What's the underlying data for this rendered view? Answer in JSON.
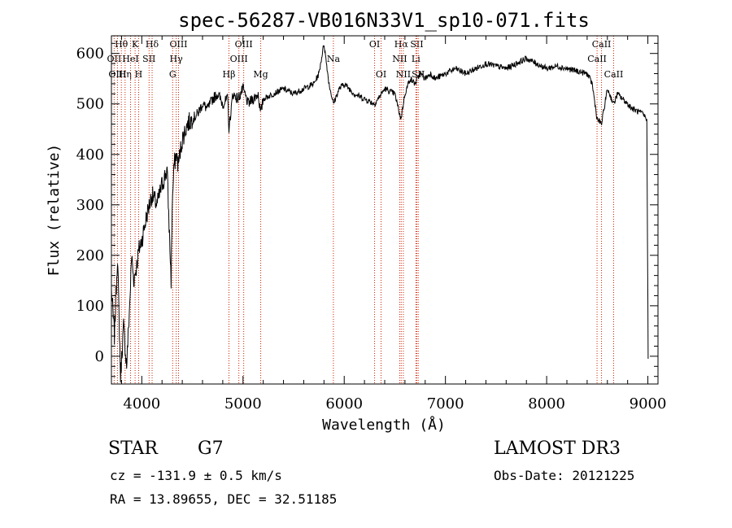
{
  "chart_data": {
    "type": "line",
    "title": "spec-56287-VB016N33V1_sp10-071.fits",
    "xlabel": "Wavelength (Å)",
    "ylabel": "Flux (relative)",
    "xlim": [
      3700,
      9100
    ],
    "ylim": [
      -55,
      635
    ],
    "xticks": [
      4000,
      5000,
      6000,
      7000,
      8000,
      9000
    ],
    "yticks": [
      0,
      100,
      200,
      300,
      400,
      500,
      600
    ],
    "grid": false,
    "series": [
      {
        "color": "#000000",
        "x": [
          3700,
          3730,
          3760,
          3790,
          3820,
          3850,
          3880,
          3900,
          3920,
          3950,
          3970,
          4000,
          4050,
          4100,
          4150,
          4200,
          4250,
          4290,
          4300,
          4320,
          4340,
          4360,
          4400,
          4450,
          4500,
          4550,
          4600,
          4650,
          4700,
          4750,
          4800,
          4850,
          4861,
          4900,
          4950,
          5000,
          5050,
          5100,
          5150,
          5175,
          5200,
          5300,
          5400,
          5500,
          5600,
          5700,
          5750,
          5800,
          5850,
          5893,
          5950,
          6000,
          6100,
          6200,
          6300,
          6400,
          6500,
          6560,
          6600,
          6650,
          6700,
          6750,
          6800,
          6850,
          6900,
          7000,
          7100,
          7200,
          7300,
          7400,
          7500,
          7600,
          7700,
          7800,
          7900,
          8000,
          8100,
          8200,
          8300,
          8400,
          8450,
          8498,
          8542,
          8600,
          8662,
          8700,
          8750,
          8800,
          8850,
          8900,
          8950,
          8990,
          9000,
          9003
        ],
        "values": [
          130,
          40,
          200,
          -40,
          60,
          -20,
          100,
          200,
          150,
          180,
          210,
          230,
          280,
          320,
          300,
          340,
          370,
          150,
          300,
          380,
          400,
          380,
          430,
          460,
          470,
          480,
          500,
          490,
          510,
          520,
          500,
          510,
          450,
          520,
          510,
          530,
          500,
          510,
          520,
          480,
          510,
          520,
          530,
          520,
          530,
          540,
          560,
          620,
          540,
          500,
          530,
          540,
          520,
          510,
          500,
          530,
          520,
          470,
          520,
          550,
          540,
          560,
          550,
          560,
          550,
          560,
          570,
          560,
          570,
          580,
          575,
          570,
          580,
          590,
          580,
          570,
          575,
          570,
          565,
          560,
          540,
          470,
          460,
          530,
          500,
          520,
          510,
          500,
          490,
          485,
          480,
          470,
          100,
          -5
        ]
      }
    ],
    "spectral_lines": [
      {
        "name": "Hθ",
        "wavelength": 3798,
        "row": 0
      },
      {
        "name": "OII",
        "wavelength": 3727,
        "row": 1
      },
      {
        "name": "OIII",
        "wavelength": 3760,
        "row": 2
      },
      {
        "name": "Hη",
        "wavelength": 3835,
        "row": 2
      },
      {
        "name": "K",
        "wavelength": 3934,
        "row": 0
      },
      {
        "name": "HeI",
        "wavelength": 3889,
        "row": 1
      },
      {
        "name": "H",
        "wavelength": 3969,
        "row": 2
      },
      {
        "name": "Hδ",
        "wavelength": 4102,
        "row": 0
      },
      {
        "name": "SII",
        "wavelength": 4072,
        "row": 1
      },
      {
        "name": "OIII",
        "wavelength": 4363,
        "row": 0
      },
      {
        "name": "Hγ",
        "wavelength": 4340,
        "row": 1
      },
      {
        "name": "G",
        "wavelength": 4305,
        "row": 2
      },
      {
        "name": "Hβ",
        "wavelength": 4861,
        "row": 2
      },
      {
        "name": "OIII",
        "wavelength": 5007,
        "row": 0
      },
      {
        "name": "OIII",
        "wavelength": 4959,
        "row": 1
      },
      {
        "name": "Mg",
        "wavelength": 5175,
        "row": 2
      },
      {
        "name": "Na",
        "wavelength": 5893,
        "row": 1
      },
      {
        "name": "OI",
        "wavelength": 6300,
        "row": 0
      },
      {
        "name": "OI",
        "wavelength": 6364,
        "row": 2
      },
      {
        "name": "Hα",
        "wavelength": 6563,
        "row": 0
      },
      {
        "name": "NII",
        "wavelength": 6548,
        "row": 1
      },
      {
        "name": "NII",
        "wavelength": 6584,
        "row": 2
      },
      {
        "name": "SII",
        "wavelength": 6717,
        "row": 0
      },
      {
        "name": "Li",
        "wavelength": 6708,
        "row": 1
      },
      {
        "name": "SII",
        "wavelength": 6731,
        "row": 2
      },
      {
        "name": "CaII",
        "wavelength": 8542,
        "row": 0
      },
      {
        "name": "CaII",
        "wavelength": 8498,
        "row": 1
      },
      {
        "name": "CaII",
        "wavelength": 8662,
        "row": 2
      }
    ]
  },
  "info": {
    "object_class": "STAR",
    "subclass": "G7",
    "survey": "LAMOST DR3",
    "redshift": "cz = -131.9 ± 0.5 km/s",
    "obs_date": "Obs-Date: 20121225",
    "coords": "RA =  13.89655, DEC =  32.51185"
  }
}
